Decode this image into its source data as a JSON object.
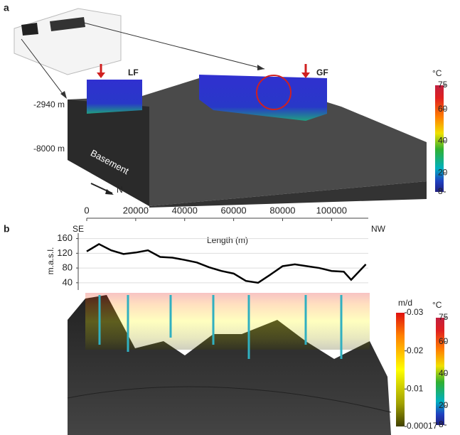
{
  "panel_a": {
    "label": "a",
    "lf": "LF",
    "gf": "GF",
    "depth_top": "-2940 m",
    "depth_bottom": "-8000 m",
    "basement": "Basement",
    "north": "N",
    "colorbar": {
      "unit": "°C",
      "lim": [
        8,
        75
      ],
      "ticks": [
        75,
        60,
        40,
        20,
        8
      ]
    }
  },
  "panel_b": {
    "label": "b",
    "colorbar_flow": {
      "unit": "m/d",
      "lim": [
        0.00017,
        0.03
      ],
      "ticks": [
        0.03,
        0.02,
        0.01,
        0.00017
      ]
    },
    "colorbar_temp": {
      "unit": "°C",
      "lim": [
        8,
        75
      ],
      "ticks": [
        75,
        60,
        40,
        20,
        8
      ]
    }
  },
  "chart_data": {
    "type": "line",
    "xlabel": "Length (m)",
    "ylabel": "m.a.s.l.",
    "left_label": "SE",
    "right_label": "NW",
    "x": [
      0,
      5000,
      10000,
      15000,
      20000,
      25000,
      30000,
      35000,
      40000,
      45000,
      50000,
      55000,
      60000,
      65000,
      70000,
      75000,
      80000,
      85000,
      90000,
      95000,
      100000,
      105000,
      108000,
      114000
    ],
    "series": [
      {
        "color": "#000000",
        "values": [
          125,
          145,
          128,
          118,
          122,
          128,
          110,
          108,
          102,
          95,
          82,
          72,
          65,
          45,
          40,
          62,
          85,
          90,
          85,
          80,
          72,
          70,
          48,
          90
        ]
      }
    ],
    "xlim": [
      0,
      115000
    ],
    "xticks": [
      0,
      20000,
      40000,
      60000,
      80000,
      100000
    ],
    "ylim": [
      30,
      165
    ],
    "yticks": [
      40,
      80,
      120,
      160
    ],
    "grid": true
  }
}
